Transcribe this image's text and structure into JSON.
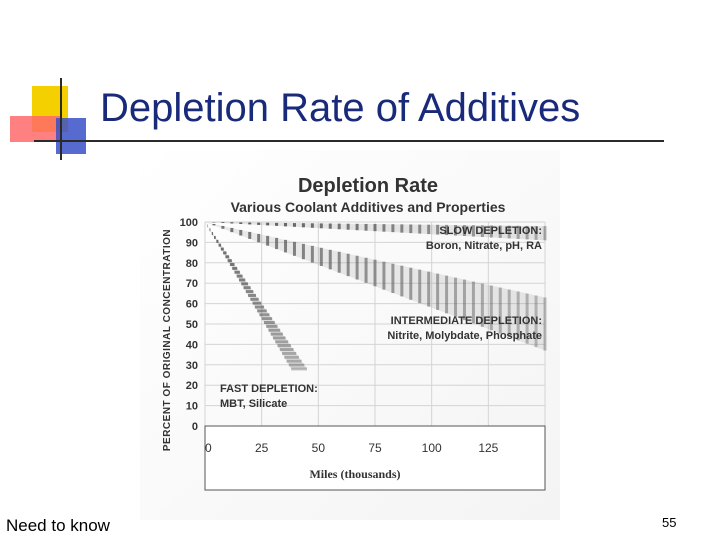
{
  "slide": {
    "title": "Depletion Rate of Additives",
    "footer_note": "Need to know",
    "page_number": "55"
  },
  "colors": {
    "title": "#1a2a7a",
    "accent_yellow": "#f5d000",
    "accent_red": "#ff5a5a",
    "accent_blue": "#3a50c8",
    "rule": "#2a2a2a"
  },
  "chart_data": {
    "type": "line",
    "title": "Depletion Rate",
    "subtitle": "Various Coolant Additives and Properties",
    "xlabel": "Miles (thousands)",
    "ylabel": "PERCENT OF ORIGINAL CONCENTRATION",
    "xlim": [
      0,
      150
    ],
    "ylim": [
      0,
      100
    ],
    "x_ticks": [
      "0",
      "25",
      "50",
      "75",
      "100",
      "125"
    ],
    "y_ticks": [
      "0",
      "10",
      "20",
      "30",
      "40",
      "50",
      "60",
      "70",
      "80",
      "90",
      "100"
    ],
    "grid": true,
    "series": [
      {
        "name": "SLOW DEPLETION:",
        "additives": "Boron, Nitrate, pH, RA",
        "band_color": "#3a3a3a",
        "upper": [
          {
            "x": 0,
            "y": 100
          },
          {
            "x": 150,
            "y": 98
          }
        ],
        "lower": [
          {
            "x": 0,
            "y": 100
          },
          {
            "x": 150,
            "y": 91
          }
        ],
        "label_at": {
          "x": 150,
          "y": 95
        }
      },
      {
        "name": "INTERMEDIATE DEPLETION:",
        "additives": "Nitrite, Molybdate, Phosphate",
        "band_color": "#5a5a5a",
        "upper": [
          {
            "x": 0,
            "y": 100
          },
          {
            "x": 150,
            "y": 63
          }
        ],
        "lower": [
          {
            "x": 0,
            "y": 100
          },
          {
            "x": 150,
            "y": 37
          }
        ],
        "label_at": {
          "x": 150,
          "y": 55
        }
      },
      {
        "name": "FAST DEPLETION:",
        "additives": "MBT, Silicate",
        "band_color": "#4a4a4a",
        "upper": [
          {
            "x": 0,
            "y": 100
          },
          {
            "x": 45,
            "y": 28
          }
        ],
        "lower": [
          {
            "x": 0,
            "y": 100
          },
          {
            "x": 38,
            "y": 28
          }
        ],
        "label_at": {
          "x": 30,
          "y": 24
        }
      }
    ]
  }
}
